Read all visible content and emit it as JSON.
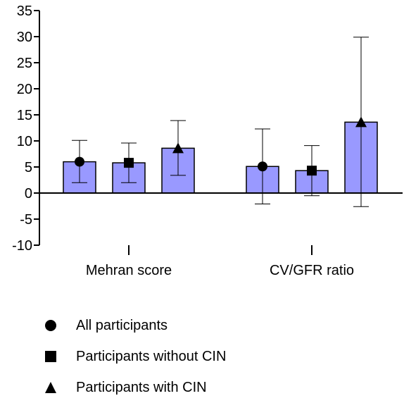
{
  "chart_data": {
    "type": "bar",
    "categories": [
      "Mehran score",
      "CV/GFR ratio"
    ],
    "ylim": [
      -10,
      35
    ],
    "yticks": [
      35,
      30,
      25,
      20,
      15,
      10,
      5,
      0,
      -5,
      -10
    ],
    "grid": false,
    "legend_position": "bottom",
    "bar_color": "#9999ff",
    "series": [
      {
        "name": "All participants",
        "marker": "circle",
        "values": [
          6.0,
          5.1
        ],
        "error_low": [
          2.0,
          -2.1
        ],
        "error_high": [
          10.1,
          12.3
        ]
      },
      {
        "name": "Participants without CIN",
        "marker": "square",
        "values": [
          5.8,
          4.3
        ],
        "error_low": [
          2.0,
          -0.5
        ],
        "error_high": [
          9.6,
          9.1
        ]
      },
      {
        "name": "Participants with CIN",
        "marker": "triangle",
        "values": [
          8.6,
          13.6
        ],
        "error_low": [
          3.4,
          -2.6
        ],
        "error_high": [
          13.9,
          29.9
        ]
      }
    ]
  }
}
